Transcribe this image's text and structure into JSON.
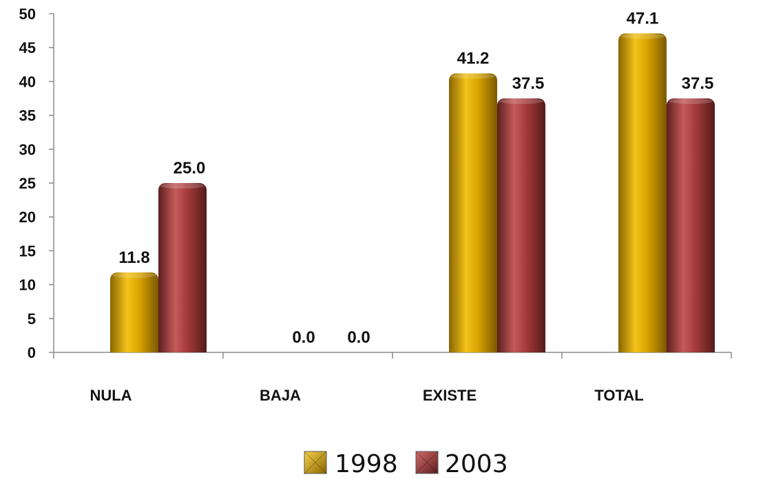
{
  "chart_data": {
    "type": "bar",
    "categories": [
      "NULA",
      "BAJA",
      "EXISTE",
      "TOTAL"
    ],
    "series": [
      {
        "name": "1998",
        "values": [
          11.8,
          0.0,
          41.2,
          47.1
        ],
        "color": "#D9A400"
      },
      {
        "name": "2003",
        "values": [
          25.0,
          0.0,
          37.5,
          37.5
        ],
        "color": "#A53A3A"
      }
    ],
    "data_labels": [
      [
        "11.8",
        "0.0",
        "41.2",
        "47.1"
      ],
      [
        "25.0",
        "0.0",
        "37.5",
        "37.5"
      ]
    ],
    "ylim": [
      0,
      50
    ],
    "yticks": [
      "0",
      "5",
      "10",
      "15",
      "20",
      "25",
      "30",
      "35",
      "40",
      "45",
      "50"
    ],
    "grid": false,
    "legend_position": "bottom"
  }
}
